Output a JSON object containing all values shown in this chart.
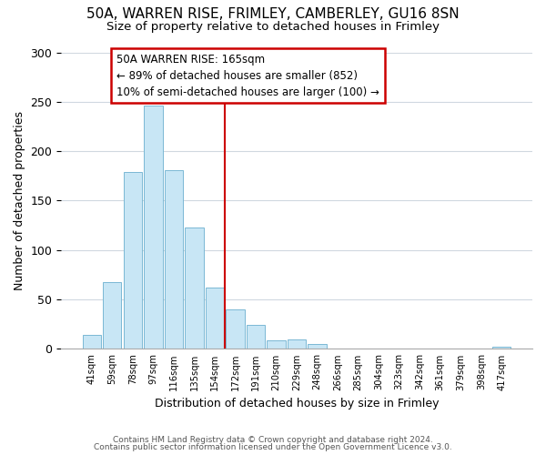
{
  "title1": "50A, WARREN RISE, FRIMLEY, CAMBERLEY, GU16 8SN",
  "title2": "Size of property relative to detached houses in Frimley",
  "xlabel": "Distribution of detached houses by size in Frimley",
  "ylabel": "Number of detached properties",
  "bar_labels": [
    "41sqm",
    "59sqm",
    "78sqm",
    "97sqm",
    "116sqm",
    "135sqm",
    "154sqm",
    "172sqm",
    "191sqm",
    "210sqm",
    "229sqm",
    "248sqm",
    "266sqm",
    "285sqm",
    "304sqm",
    "323sqm",
    "342sqm",
    "361sqm",
    "379sqm",
    "398sqm",
    "417sqm"
  ],
  "bar_heights": [
    14,
    68,
    179,
    246,
    181,
    123,
    62,
    40,
    24,
    9,
    10,
    5,
    0,
    0,
    0,
    0,
    0,
    0,
    0,
    0,
    2
  ],
  "bar_color": "#c8e6f5",
  "bar_edge_color": "#7ab8d4",
  "vline_color": "#cc0000",
  "annotation_title": "50A WARREN RISE: 165sqm",
  "annotation_line1": "← 89% of detached houses are smaller (852)",
  "annotation_line2": "10% of semi-detached houses are larger (100) →",
  "footer1": "Contains HM Land Registry data © Crown copyright and database right 2024.",
  "footer2": "Contains public sector information licensed under the Open Government Licence v3.0.",
  "ylim": [
    0,
    300
  ],
  "yticks": [
    0,
    50,
    100,
    150,
    200,
    250,
    300
  ]
}
